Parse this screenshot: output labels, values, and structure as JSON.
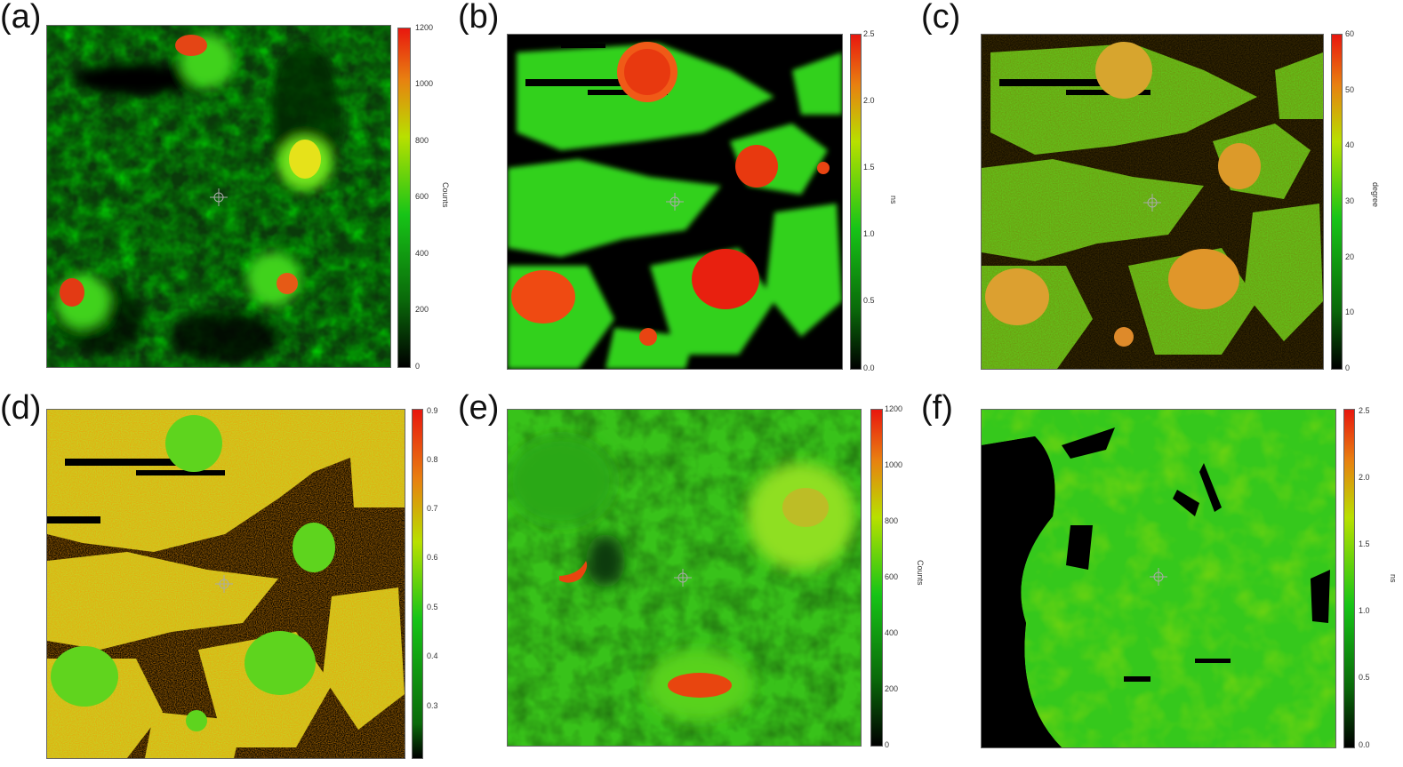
{
  "panels": [
    {
      "label": "(a)",
      "unit": "Counts",
      "ticks": [
        "1200",
        "1000",
        "800",
        "600",
        "400",
        "200",
        "0"
      ],
      "style": "counts-dark"
    },
    {
      "label": "(b)",
      "unit": "ns",
      "ticks": [
        "2.5",
        "2.0",
        "1.5",
        "1.0",
        "0.5",
        "0.0"
      ],
      "style": "ns-dark"
    },
    {
      "label": "(c)",
      "unit": "degree",
      "ticks": [
        "60",
        "50",
        "40",
        "30",
        "20",
        "10",
        "0"
      ],
      "style": "deg"
    },
    {
      "label": "(d)",
      "unit": "",
      "ticks": [
        "0.9",
        "0.8",
        "0.7",
        "0.6",
        "0.5",
        "0.4",
        "0.3"
      ],
      "style": "frac"
    },
    {
      "label": "(e)",
      "unit": "Counts",
      "ticks": [
        "1200",
        "1000",
        "800",
        "600",
        "400",
        "200",
        "0"
      ],
      "style": "counts-light"
    },
    {
      "label": "(f)",
      "unit": "ns",
      "ticks": [
        "2.5",
        "2.0",
        "1.5",
        "1.0",
        "0.5",
        "0.0"
      ],
      "style": "ns-light"
    }
  ],
  "colormap": {
    "low": "#000000",
    "mid": "#17c417",
    "high_mid": "#e8e800",
    "high": "#e8170f"
  }
}
